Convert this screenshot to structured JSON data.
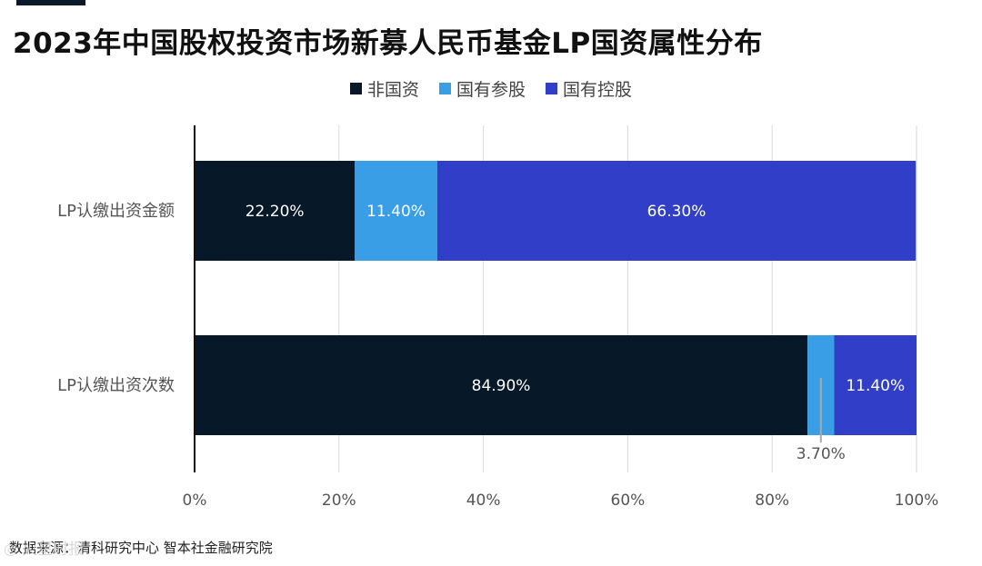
{
  "title": "2023年中国股权投资市场新募人民币基金LP国资属性分布",
  "legend": [
    {
      "label": "非国资",
      "color": "#071829"
    },
    {
      "label": "国有参股",
      "color": "#3a9ee6"
    },
    {
      "label": "国有控股",
      "color": "#313fc8"
    }
  ],
  "footer": "数据来源：清科研究中心 智本社金融研究院",
  "watermark": "◎ 火星时报",
  "chart_data": {
    "type": "bar",
    "orientation": "horizontal",
    "stacked": true,
    "categories": [
      "LP认缴出资金额",
      "LP认缴出资次数"
    ],
    "series": [
      {
        "name": "非国资",
        "values": [
          22.2,
          84.9
        ],
        "labels": [
          "22.20%",
          "84.90%"
        ],
        "color": "#071829"
      },
      {
        "name": "国有参股",
        "values": [
          11.4,
          3.7
        ],
        "labels": [
          "11.40%",
          "3.70%"
        ],
        "color": "#3a9ee6"
      },
      {
        "name": "国有控股",
        "values": [
          66.3,
          11.4
        ],
        "labels": [
          "66.30%",
          "11.40%"
        ],
        "color": "#313fc8"
      }
    ],
    "xlim": [
      0,
      100
    ],
    "xticks": [
      "0%",
      "20%",
      "40%",
      "60%",
      "80%",
      "100%"
    ],
    "grid": true,
    "legend_position": "top"
  }
}
